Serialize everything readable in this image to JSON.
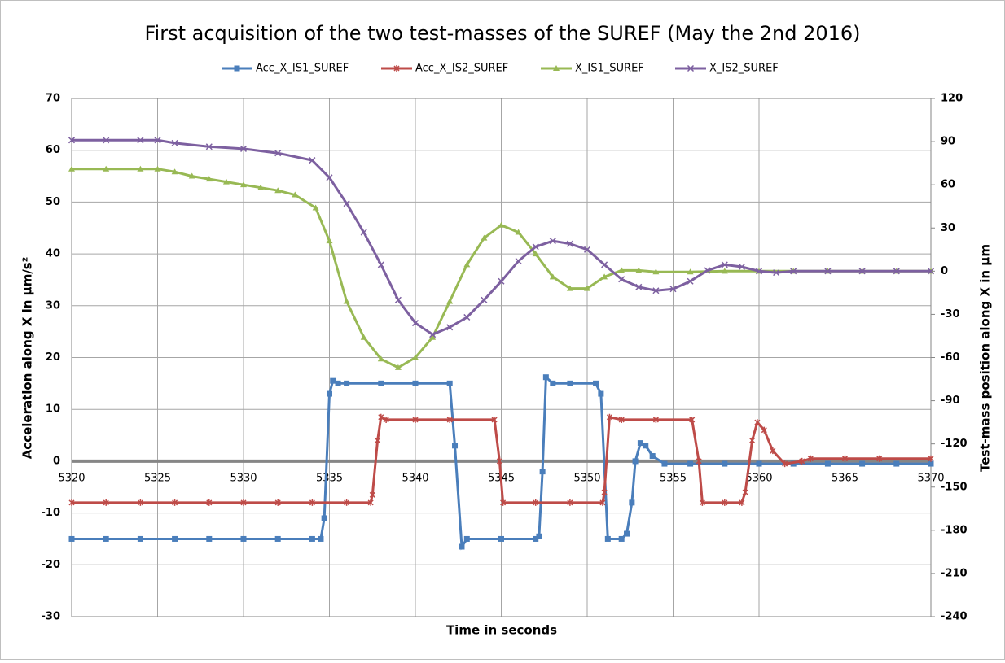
{
  "chart_data": {
    "type": "line",
    "title": "First acquisition of the two test-masses of the SUREF (May the 2nd 2016)",
    "xlabel": "Time in seconds",
    "ylabel": "Acceleration along X in µm/s²",
    "y2label": "Test-mass position along X in µm",
    "xlim": [
      5320,
      5370
    ],
    "xticks": [
      5320,
      5325,
      5330,
      5335,
      5340,
      5345,
      5350,
      5355,
      5360,
      5365,
      5370
    ],
    "ylim": [
      -30,
      70
    ],
    "yticks": [
      -30,
      -20,
      -10,
      0,
      10,
      20,
      30,
      40,
      50,
      60,
      70
    ],
    "y2lim": [
      -240,
      120
    ],
    "y2ticks": [
      -240,
      -210,
      -180,
      -150,
      -120,
      -90,
      -60,
      -30,
      0,
      30,
      60,
      90,
      120
    ],
    "grid": true,
    "legend": "top",
    "series": [
      {
        "name": "Acc_X_IS1_SUREF",
        "color": "#4a7ebb",
        "marker": "square",
        "x": [
          5320,
          5322,
          5324,
          5326,
          5328,
          5330,
          5332,
          5334,
          5334.5,
          5334.7,
          5335.0,
          5335.2,
          5335.5,
          5336,
          5338,
          5340,
          5342,
          5342.3,
          5342.7,
          5343,
          5345,
          5347,
          5347.2,
          5347.4,
          5347.6,
          5348,
          5349,
          5350.5,
          5350.8,
          5351.2,
          5352,
          5352.3,
          5352.6,
          5352.8,
          5353.1,
          5353.4,
          5353.8,
          5354.5,
          5356,
          5358,
          5360,
          5362,
          5364,
          5366,
          5368,
          5370
        ],
        "values": [
          -15,
          -15,
          -15,
          -15,
          -15,
          -15,
          -15,
          -15,
          -15,
          -11,
          13,
          15.5,
          15,
          15,
          15,
          15,
          15,
          3,
          -16.5,
          -15,
          -15,
          -15,
          -14.5,
          -2,
          16.2,
          15,
          15,
          15,
          13,
          -15,
          -15,
          -14,
          -8,
          0,
          3.5,
          3,
          1,
          -0.5,
          -0.5,
          -0.5,
          -0.5,
          -0.5,
          -0.5,
          -0.5,
          -0.5,
          -0.5
        ]
      },
      {
        "name": "Acc_X_IS2_SUREF",
        "color": "#be4b48",
        "marker": "star",
        "x": [
          5320,
          5322,
          5324,
          5326,
          5328,
          5330,
          5332,
          5334,
          5336,
          5337.4,
          5337.5,
          5337.8,
          5338,
          5338.3,
          5340,
          5342,
          5344.6,
          5344.9,
          5345.1,
          5347,
          5349,
          5350.9,
          5351,
          5351.3,
          5352,
          5354,
          5356.1,
          5356.5,
          5356.7,
          5358,
          5359,
          5359.2,
          5359.6,
          5359.9,
          5360.3,
          5360.8,
          5361.5,
          5362.5,
          5363,
          5365,
          5367,
          5370
        ],
        "values": [
          -8,
          -8,
          -8,
          -8,
          -8,
          -8,
          -8,
          -8,
          -8,
          -8,
          -6.5,
          4,
          8.5,
          8,
          8,
          8,
          8,
          0,
          -8,
          -8,
          -8,
          -8,
          -6,
          8.5,
          8,
          8,
          8,
          0,
          -8,
          -8,
          -8,
          -6,
          4,
          7.5,
          6,
          2,
          -0.5,
          0,
          0.5,
          0.5,
          0.5,
          0.5
        ]
      },
      {
        "name": "X_IS1_SUREF",
        "color": "#98b954",
        "marker": "triangle",
        "axis": "y2",
        "x": [
          5320,
          5322,
          5324,
          5325,
          5326,
          5327,
          5328,
          5329,
          5330,
          5331,
          5332,
          5333,
          5334.2,
          5335,
          5336,
          5337,
          5338,
          5339,
          5340,
          5341,
          5342,
          5343,
          5344,
          5345,
          5346,
          5347,
          5348,
          5349,
          5350,
          5351,
          5352,
          5353,
          5354,
          5356,
          5358,
          5360,
          5362,
          5364,
          5366,
          5368,
          5370
        ],
        "values": [
          71,
          71,
          71,
          71,
          69,
          66,
          64,
          62,
          60,
          58,
          56,
          53,
          44,
          21,
          -21,
          -46,
          -61,
          -67,
          -60,
          -46,
          -21,
          4.5,
          23,
          32,
          27,
          12,
          -4,
          -12,
          -12,
          -4,
          0.5,
          0.5,
          -0.5,
          -0.5,
          0,
          0,
          0,
          0,
          0,
          0,
          0
        ]
      },
      {
        "name": "X_IS2_SUREF",
        "color": "#7d60a0",
        "marker": "x",
        "axis": "y2",
        "x": [
          5320,
          5322,
          5324,
          5325,
          5326,
          5328,
          5330,
          5332,
          5334,
          5335,
          5336,
          5337,
          5338,
          5339,
          5340,
          5341,
          5342,
          5343,
          5344,
          5345,
          5346,
          5347,
          5348,
          5349,
          5350,
          5351,
          5352,
          5353,
          5354,
          5355,
          5356,
          5357,
          5358,
          5359,
          5360,
          5361,
          5362,
          5364,
          5366,
          5368,
          5370
        ],
        "values": [
          91,
          91,
          91,
          91,
          89,
          86.5,
          85,
          82,
          77,
          65,
          47,
          27,
          4.5,
          -20,
          -36,
          -44,
          -39,
          -32,
          -20,
          -7,
          7,
          17,
          21,
          19,
          15,
          4.5,
          -5.6,
          -11,
          -13.5,
          -12.4,
          -7,
          0.5,
          4.5,
          3,
          0,
          -1,
          0,
          0,
          0,
          0,
          0
        ]
      }
    ]
  }
}
